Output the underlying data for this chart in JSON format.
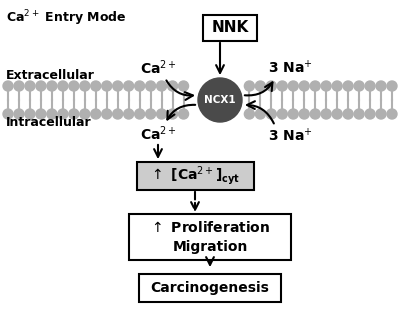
{
  "background_color": "#ffffff",
  "fig_w": 4.0,
  "fig_h": 3.16,
  "dpi": 100,
  "membrane_color": "#b0b0b0",
  "ncx1_color": "#4a4a4a",
  "ncx1_label": "NCX1",
  "nnk_label": "NNK",
  "title_text": "Ca$^{2+}$ Entry Mode",
  "extracellular_text": "Extracellular",
  "intracellular_text": "Intracellular",
  "box1_bg": "#cccccc",
  "box3_label": "Carcinogenesis"
}
